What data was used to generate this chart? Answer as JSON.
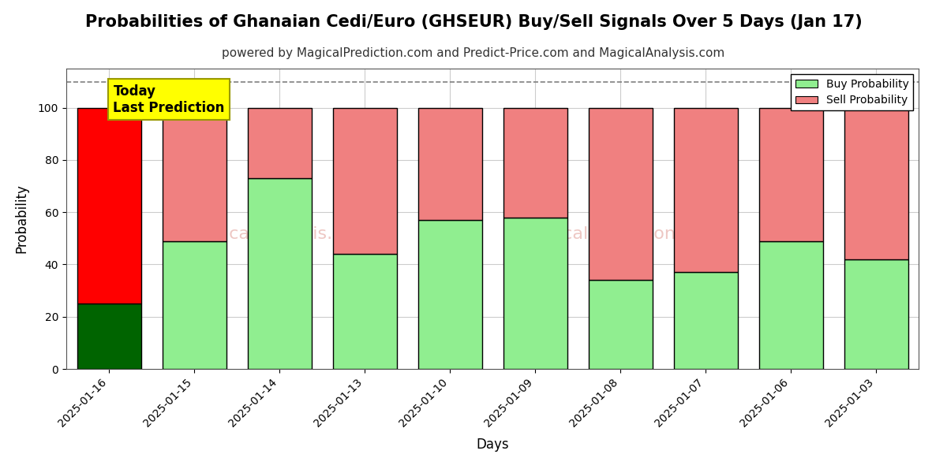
{
  "title": "Probabilities of Ghanaian Cedi/Euro (GHSEUR) Buy/Sell Signals Over 5 Days (Jan 17)",
  "subtitle": "powered by MagicalPrediction.com and Predict-Price.com and MagicalAnalysis.com",
  "xlabel": "Days",
  "ylabel": "Probability",
  "categories": [
    "2025-01-16",
    "2025-01-15",
    "2025-01-14",
    "2025-01-13",
    "2025-01-10",
    "2025-01-09",
    "2025-01-08",
    "2025-01-07",
    "2025-01-06",
    "2025-01-03"
  ],
  "buy_values": [
    25,
    49,
    73,
    44,
    57,
    58,
    34,
    37,
    49,
    42
  ],
  "sell_values": [
    75,
    51,
    27,
    56,
    43,
    42,
    66,
    63,
    51,
    58
  ],
  "buy_colors": [
    "#006400",
    "#90EE90",
    "#90EE90",
    "#90EE90",
    "#90EE90",
    "#90EE90",
    "#90EE90",
    "#90EE90",
    "#90EE90",
    "#90EE90"
  ],
  "sell_colors": [
    "#FF0000",
    "#F08080",
    "#F08080",
    "#F08080",
    "#F08080",
    "#F08080",
    "#F08080",
    "#F08080",
    "#F08080",
    "#F08080"
  ],
  "legend_buy_color": "#90EE90",
  "legend_sell_color": "#F08080",
  "today_box_color": "#FFFF00",
  "today_text": "Today\nLast Prediction",
  "dashed_line_y": 110,
  "ylim": [
    0,
    115
  ],
  "yticks": [
    0,
    20,
    40,
    60,
    80,
    100
  ],
  "background_color": "#ffffff",
  "grid_color": "#cccccc",
  "title_fontsize": 15,
  "subtitle_fontsize": 11,
  "bar_edgecolor": "#000000",
  "bar_linewidth": 1.0,
  "bar_width": 0.75
}
